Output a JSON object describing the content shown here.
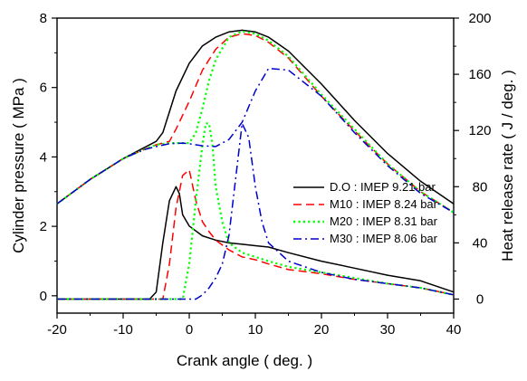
{
  "chart_data": {
    "type": "line",
    "xlabel": "Crank angle ( deg. )",
    "ylabel_left": "Cylinder pressure ( MPa )",
    "ylabel_right": "Heat release rate  ( J / deg. )",
    "xlim": [
      -20,
      40
    ],
    "ylim_left": [
      -0.5,
      8
    ],
    "ylim_right": [
      -10,
      200
    ],
    "x_ticks": [
      -20,
      -10,
      0,
      10,
      20,
      30,
      40
    ],
    "y_ticks_left": [
      0,
      2,
      4,
      6,
      8
    ],
    "y_ticks_right": [
      0,
      40,
      80,
      120,
      160,
      200
    ],
    "grid": false,
    "legend_position": "right",
    "series": [
      {
        "name": "D.O : IMEP 9.21 bar",
        "color": "#000000",
        "dash": "solid",
        "pressure": {
          "x": [
            -20,
            -15,
            -10,
            -7,
            -5,
            -4,
            -3,
            -2,
            0,
            2,
            4,
            6,
            8,
            10,
            12,
            15,
            20,
            25,
            30,
            35,
            40
          ],
          "y": [
            2.65,
            3.35,
            3.95,
            4.25,
            4.45,
            4.7,
            5.3,
            5.9,
            6.7,
            7.2,
            7.45,
            7.6,
            7.65,
            7.6,
            7.45,
            7.05,
            6.1,
            5.05,
            4.1,
            3.3,
            2.65
          ]
        },
        "heat_release": {
          "x": [
            -20,
            -6,
            -5,
            -4,
            -3,
            -2,
            -1.5,
            -1,
            0,
            2,
            4,
            6,
            8,
            10,
            12,
            15,
            20,
            25,
            30,
            35,
            40
          ],
          "y": [
            0,
            0,
            5,
            40,
            70,
            80,
            75,
            60,
            52,
            45,
            42,
            40,
            39,
            38,
            37,
            33,
            27,
            22,
            17,
            13,
            5
          ]
        }
      },
      {
        "name": "M10 : IMEP 8.24 bar",
        "color": "#ff0000",
        "dash": "dashed",
        "pressure": {
          "x": [
            -20,
            -15,
            -10,
            -7,
            -5,
            -3,
            -2,
            0,
            2,
            4,
            6,
            8,
            10,
            12,
            15,
            20,
            25,
            30,
            35,
            40
          ],
          "y": [
            2.65,
            3.35,
            3.95,
            4.2,
            4.35,
            4.45,
            4.8,
            5.6,
            6.5,
            7.1,
            7.45,
            7.55,
            7.5,
            7.3,
            6.85,
            5.75,
            4.75,
            3.8,
            3.0,
            2.4
          ]
        },
        "heat_release": {
          "x": [
            -20,
            -4,
            -3,
            -2,
            -1,
            0,
            1,
            2,
            3,
            4,
            6,
            8,
            10,
            12,
            15,
            20,
            25,
            30,
            35,
            40
          ],
          "y": [
            0,
            0,
            25,
            65,
            88,
            92,
            70,
            55,
            48,
            42,
            35,
            30,
            28,
            25,
            21,
            18,
            14,
            11,
            8,
            3
          ]
        }
      },
      {
        "name": "M20 : IMEP 8.31 bar",
        "color": "#00ff00",
        "dash": "dotted",
        "pressure": {
          "x": [
            -20,
            -15,
            -10,
            -7,
            -5,
            -3,
            -1,
            0,
            1,
            2,
            3,
            4,
            6,
            8,
            10,
            12,
            15,
            20,
            25,
            30,
            35,
            40
          ],
          "y": [
            2.65,
            3.35,
            3.95,
            4.2,
            4.35,
            4.4,
            4.4,
            4.4,
            4.7,
            5.4,
            6.2,
            6.8,
            7.45,
            7.62,
            7.55,
            7.35,
            6.9,
            5.8,
            4.8,
            3.8,
            3.0,
            2.4
          ]
        },
        "heat_release": {
          "x": [
            -20,
            -1,
            0,
            1,
            2,
            2.5,
            3,
            3.5,
            4,
            5,
            6,
            8,
            10,
            12,
            15,
            20,
            25,
            30,
            35,
            40
          ],
          "y": [
            0,
            0,
            25,
            70,
            110,
            125,
            125,
            110,
            80,
            55,
            40,
            33,
            30,
            27,
            23,
            19,
            15,
            11,
            8,
            3
          ]
        }
      },
      {
        "name": "M30 : IMEP 8.06 bar",
        "color": "#0000cc",
        "dash": "dashdot",
        "pressure": {
          "x": [
            -20,
            -15,
            -10,
            -7,
            -5,
            -3,
            -1,
            0,
            2,
            4,
            6,
            8,
            10,
            12,
            15,
            20,
            25,
            30,
            35,
            40
          ],
          "y": [
            2.65,
            3.35,
            3.95,
            4.2,
            4.3,
            4.38,
            4.4,
            4.38,
            4.32,
            4.3,
            4.5,
            5.0,
            5.9,
            6.55,
            6.5,
            5.75,
            4.7,
            3.75,
            2.95,
            2.4
          ]
        },
        "heat_release": {
          "x": [
            -20,
            1,
            2,
            3,
            4,
            5,
            6,
            7,
            8,
            9,
            10,
            11,
            12,
            15,
            20,
            25,
            30,
            35,
            40
          ],
          "y": [
            0,
            0,
            3,
            8,
            15,
            25,
            45,
            85,
            125,
            115,
            80,
            55,
            40,
            27,
            19,
            14,
            11,
            8,
            3
          ]
        }
      }
    ]
  }
}
